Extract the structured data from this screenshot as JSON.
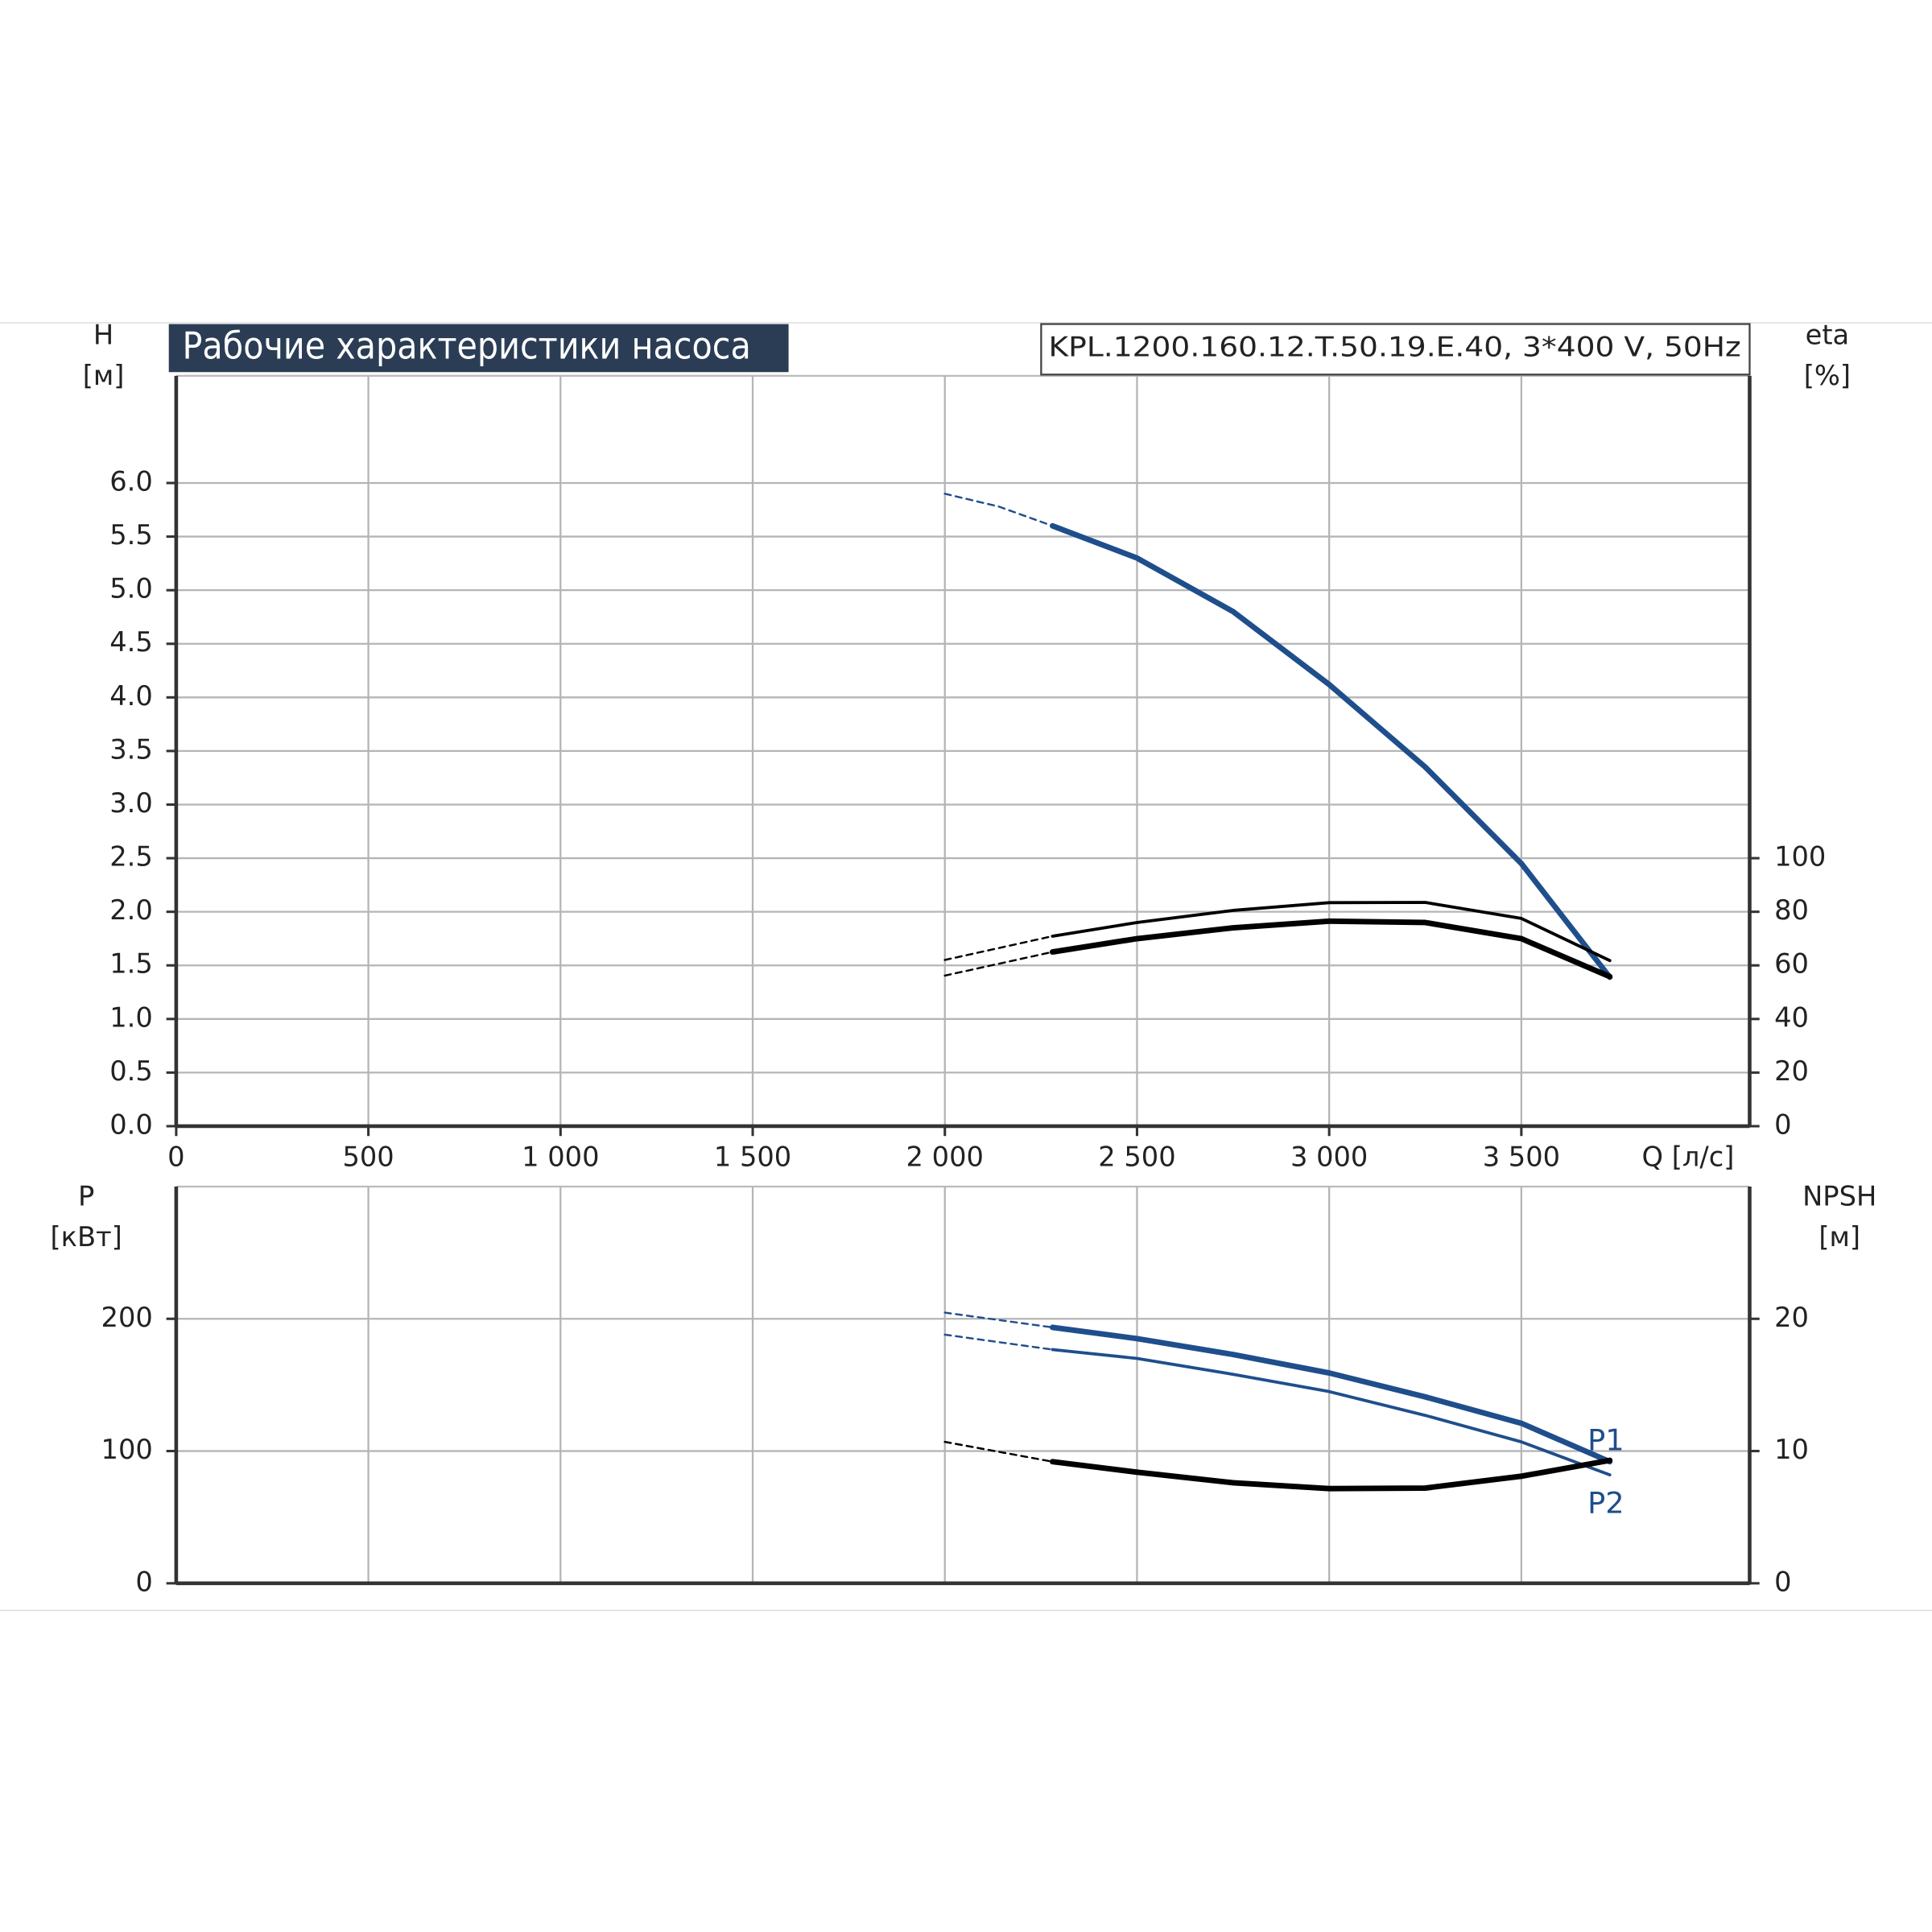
{
  "chart_data": [
    {
      "type": "line",
      "title": "Рабочие характеристики насоса",
      "subtitle": "KPL.1200.160.12.T.50.19.E.40, 3*400 V, 50Hz",
      "y_label": "H",
      "y_unit": "[м]",
      "y2_label": "eta",
      "y2_unit": "[%]",
      "x_label": "Q [л/с]",
      "xlim": [
        0,
        4094
      ],
      "xticks": [
        0,
        500,
        {
          "value": 1000,
          "label": "1 000"
        },
        {
          "value": 1500,
          "label": "1 500"
        },
        {
          "value": 2000,
          "label": "2 000"
        },
        {
          "value": 2500,
          "label": "2 500"
        },
        {
          "value": 3000,
          "label": "3 000"
        },
        {
          "value": 3500,
          "label": "3 500"
        }
      ],
      "ylim": [
        0,
        7
      ],
      "yticks": [
        {
          "value": 0,
          "label": "0.0"
        },
        {
          "value": 0.5,
          "label": "0.5"
        },
        {
          "value": 1,
          "label": "1.0"
        },
        {
          "value": 1.5,
          "label": "1.5"
        },
        {
          "value": 2,
          "label": "2.0"
        },
        {
          "value": 2.5,
          "label": "2.5"
        },
        {
          "value": 3,
          "label": "3.0"
        },
        {
          "value": 3.5,
          "label": "3.5"
        },
        {
          "value": 4,
          "label": "4.0"
        },
        {
          "value": 4.5,
          "label": "4.5"
        },
        {
          "value": 5,
          "label": "5.0"
        },
        {
          "value": 5.5,
          "label": "5.5"
        },
        {
          "value": 6,
          "label": "6.0"
        }
      ],
      "y2lim": [
        0,
        280
      ],
      "y2ticks": [
        0,
        20,
        40,
        60,
        80,
        100
      ],
      "grid": true,
      "series": [
        {
          "color": "#1f4e8c",
          "style": "dashed",
          "x": [
            2000,
            2140,
            2280
          ],
          "values": [
            5.9,
            5.78,
            5.6
          ]
        },
        {
          "color": "#1f4e8c",
          "style": "solid",
          "x": [
            2280,
            2500,
            2750,
            3000,
            3250,
            3500,
            3730
          ],
          "values": [
            5.6,
            5.3,
            4.8,
            4.12,
            3.35,
            2.45,
            1.39
          ]
        },
        {
          "color": "#000000",
          "style": "dashed",
          "axis": "y2",
          "x": [
            2000,
            2280
          ],
          "values": [
            62,
            70.9
          ]
        },
        {
          "color": "#000000",
          "style": "thin",
          "axis": "y2",
          "x": [
            2280,
            2500,
            2750,
            3000,
            3250,
            3500,
            3730
          ],
          "values": [
            70.9,
            76,
            80.5,
            83.4,
            83.5,
            77.5,
            61.8
          ]
        },
        {
          "color": "#000000",
          "style": "dashed",
          "axis": "y2",
          "x": [
            2000,
            2280
          ],
          "values": [
            56.2,
            65
          ]
        },
        {
          "color": "#000000",
          "style": "solid",
          "axis": "y2",
          "x": [
            2280,
            2500,
            2750,
            3000,
            3250,
            3500,
            3730
          ],
          "values": [
            65,
            70,
            74,
            76.5,
            76,
            70,
            55.8
          ]
        }
      ]
    },
    {
      "type": "line",
      "y_label": "P",
      "y_unit": "[кВт]",
      "y2_label": "NPSH",
      "y2_unit": "[м]",
      "xlim": [
        0,
        4094
      ],
      "xgrid": [
        500,
        1000,
        1500,
        2000,
        2500,
        3000,
        3500
      ],
      "ylim": [
        0,
        300
      ],
      "yticks": [
        0,
        100,
        200
      ],
      "y2lim": [
        0,
        30
      ],
      "y2ticks": [
        0,
        10,
        20
      ],
      "grid": true,
      "series": [
        {
          "color": "#1f4e8c",
          "style": "dashed",
          "x": [
            2000,
            2280
          ],
          "values": [
            204.7,
            193.5
          ]
        },
        {
          "name": "P1",
          "color": "#1f4e8c",
          "style": "solid",
          "x": [
            2280,
            2500,
            2750,
            3000,
            3250,
            3500,
            3730
          ],
          "values": [
            193.5,
            185,
            173,
            159,
            141,
            121,
            92
          ]
        },
        {
          "color": "#1f4e8c",
          "style": "dashed",
          "x": [
            2000,
            2280
          ],
          "values": [
            188,
            176.7
          ]
        },
        {
          "name": "P2",
          "color": "#1f4e8c",
          "style": "thin",
          "x": [
            2280,
            2500,
            2750,
            3000,
            3250,
            3500,
            3730
          ],
          "values": [
            176.7,
            170,
            158,
            145,
            127,
            107,
            82
          ]
        },
        {
          "color": "#000000",
          "style": "dashed",
          "axis": "y2",
          "x": [
            2000,
            2280
          ],
          "values": [
            10.7,
            9.2
          ]
        },
        {
          "color": "#000000",
          "style": "solid",
          "axis": "y2",
          "x": [
            2280,
            2500,
            2750,
            3000,
            3250,
            3500,
            3730
          ],
          "values": [
            9.2,
            8.4,
            7.6,
            7.16,
            7.2,
            8.1,
            9.3
          ]
        }
      ]
    }
  ]
}
